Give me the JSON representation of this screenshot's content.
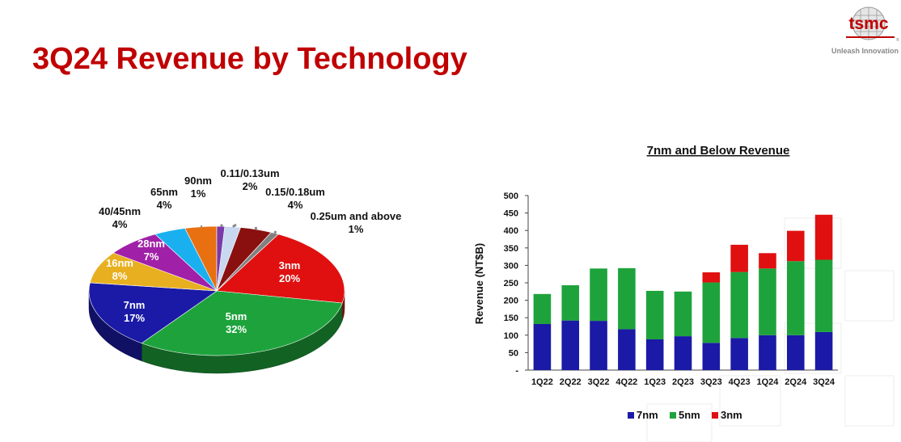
{
  "page": {
    "title": "3Q24 Revenue by Technology"
  },
  "logo": {
    "text": "tsmc",
    "tagline": "Unleash Innovation",
    "color": "#c00000"
  },
  "colors": {
    "title": "#c00000",
    "7nm": "#1a1aa6",
    "5nm": "#1ea33c",
    "3nm": "#e01010"
  },
  "chart_data": [
    {
      "type": "pie",
      "title": "",
      "slices": [
        {
          "label": "3nm",
          "value": 20,
          "pct_text": "20%",
          "color": "#e01010"
        },
        {
          "label": "5nm",
          "value": 32,
          "pct_text": "32%",
          "color": "#1ea33c"
        },
        {
          "label": "7nm",
          "value": 17,
          "pct_text": "17%",
          "color": "#1a1aa6"
        },
        {
          "label": "16nm",
          "value": 8,
          "pct_text": "8%",
          "color": "#e8b020"
        },
        {
          "label": "28nm",
          "value": 7,
          "pct_text": "7%",
          "color": "#a020a8"
        },
        {
          "label": "40/45nm",
          "value": 4,
          "pct_text": "4%",
          "color": "#1ab0f0"
        },
        {
          "label": "65nm",
          "value": 4,
          "pct_text": "4%",
          "color": "#e87010"
        },
        {
          "label": "90nm",
          "value": 1,
          "pct_text": "1%",
          "color": "#7a3aa8"
        },
        {
          "label": "0.11/0.13um",
          "value": 2,
          "pct_text": "2%",
          "color": "#c8d8f0"
        },
        {
          "label": "0.15/0.18um",
          "value": 4,
          "pct_text": "4%",
          "color": "#8a1010"
        },
        {
          "label": "0.25um and above",
          "value": 1,
          "pct_text": "1%",
          "color": "#808080"
        }
      ]
    },
    {
      "type": "bar",
      "stacked": true,
      "title": "7nm and Below Revenue",
      "ylabel": "Revenue (NT$B)",
      "xlabel": "",
      "ylim": [
        0,
        500
      ],
      "yticks": [
        "-",
        "50",
        "100",
        "150",
        "200",
        "250",
        "300",
        "350",
        "400",
        "450",
        "500"
      ],
      "categories": [
        "1Q22",
        "2Q22",
        "3Q22",
        "4Q22",
        "1Q23",
        "2Q23",
        "3Q23",
        "4Q23",
        "1Q24",
        "2Q24",
        "3Q24"
      ],
      "series": [
        {
          "name": "7nm",
          "color": "#1a1aa6",
          "values": [
            132,
            142,
            141,
            117,
            88,
            97,
            78,
            92,
            100,
            100,
            109
          ]
        },
        {
          "name": "5nm",
          "color": "#1ea33c",
          "values": [
            86,
            101,
            150,
            175,
            139,
            128,
            173,
            189,
            191,
            212,
            207
          ]
        },
        {
          "name": "3nm",
          "color": "#e01010",
          "values": [
            0,
            0,
            0,
            0,
            0,
            0,
            29,
            78,
            44,
            87,
            129
          ]
        }
      ],
      "legend": "bottom"
    }
  ]
}
